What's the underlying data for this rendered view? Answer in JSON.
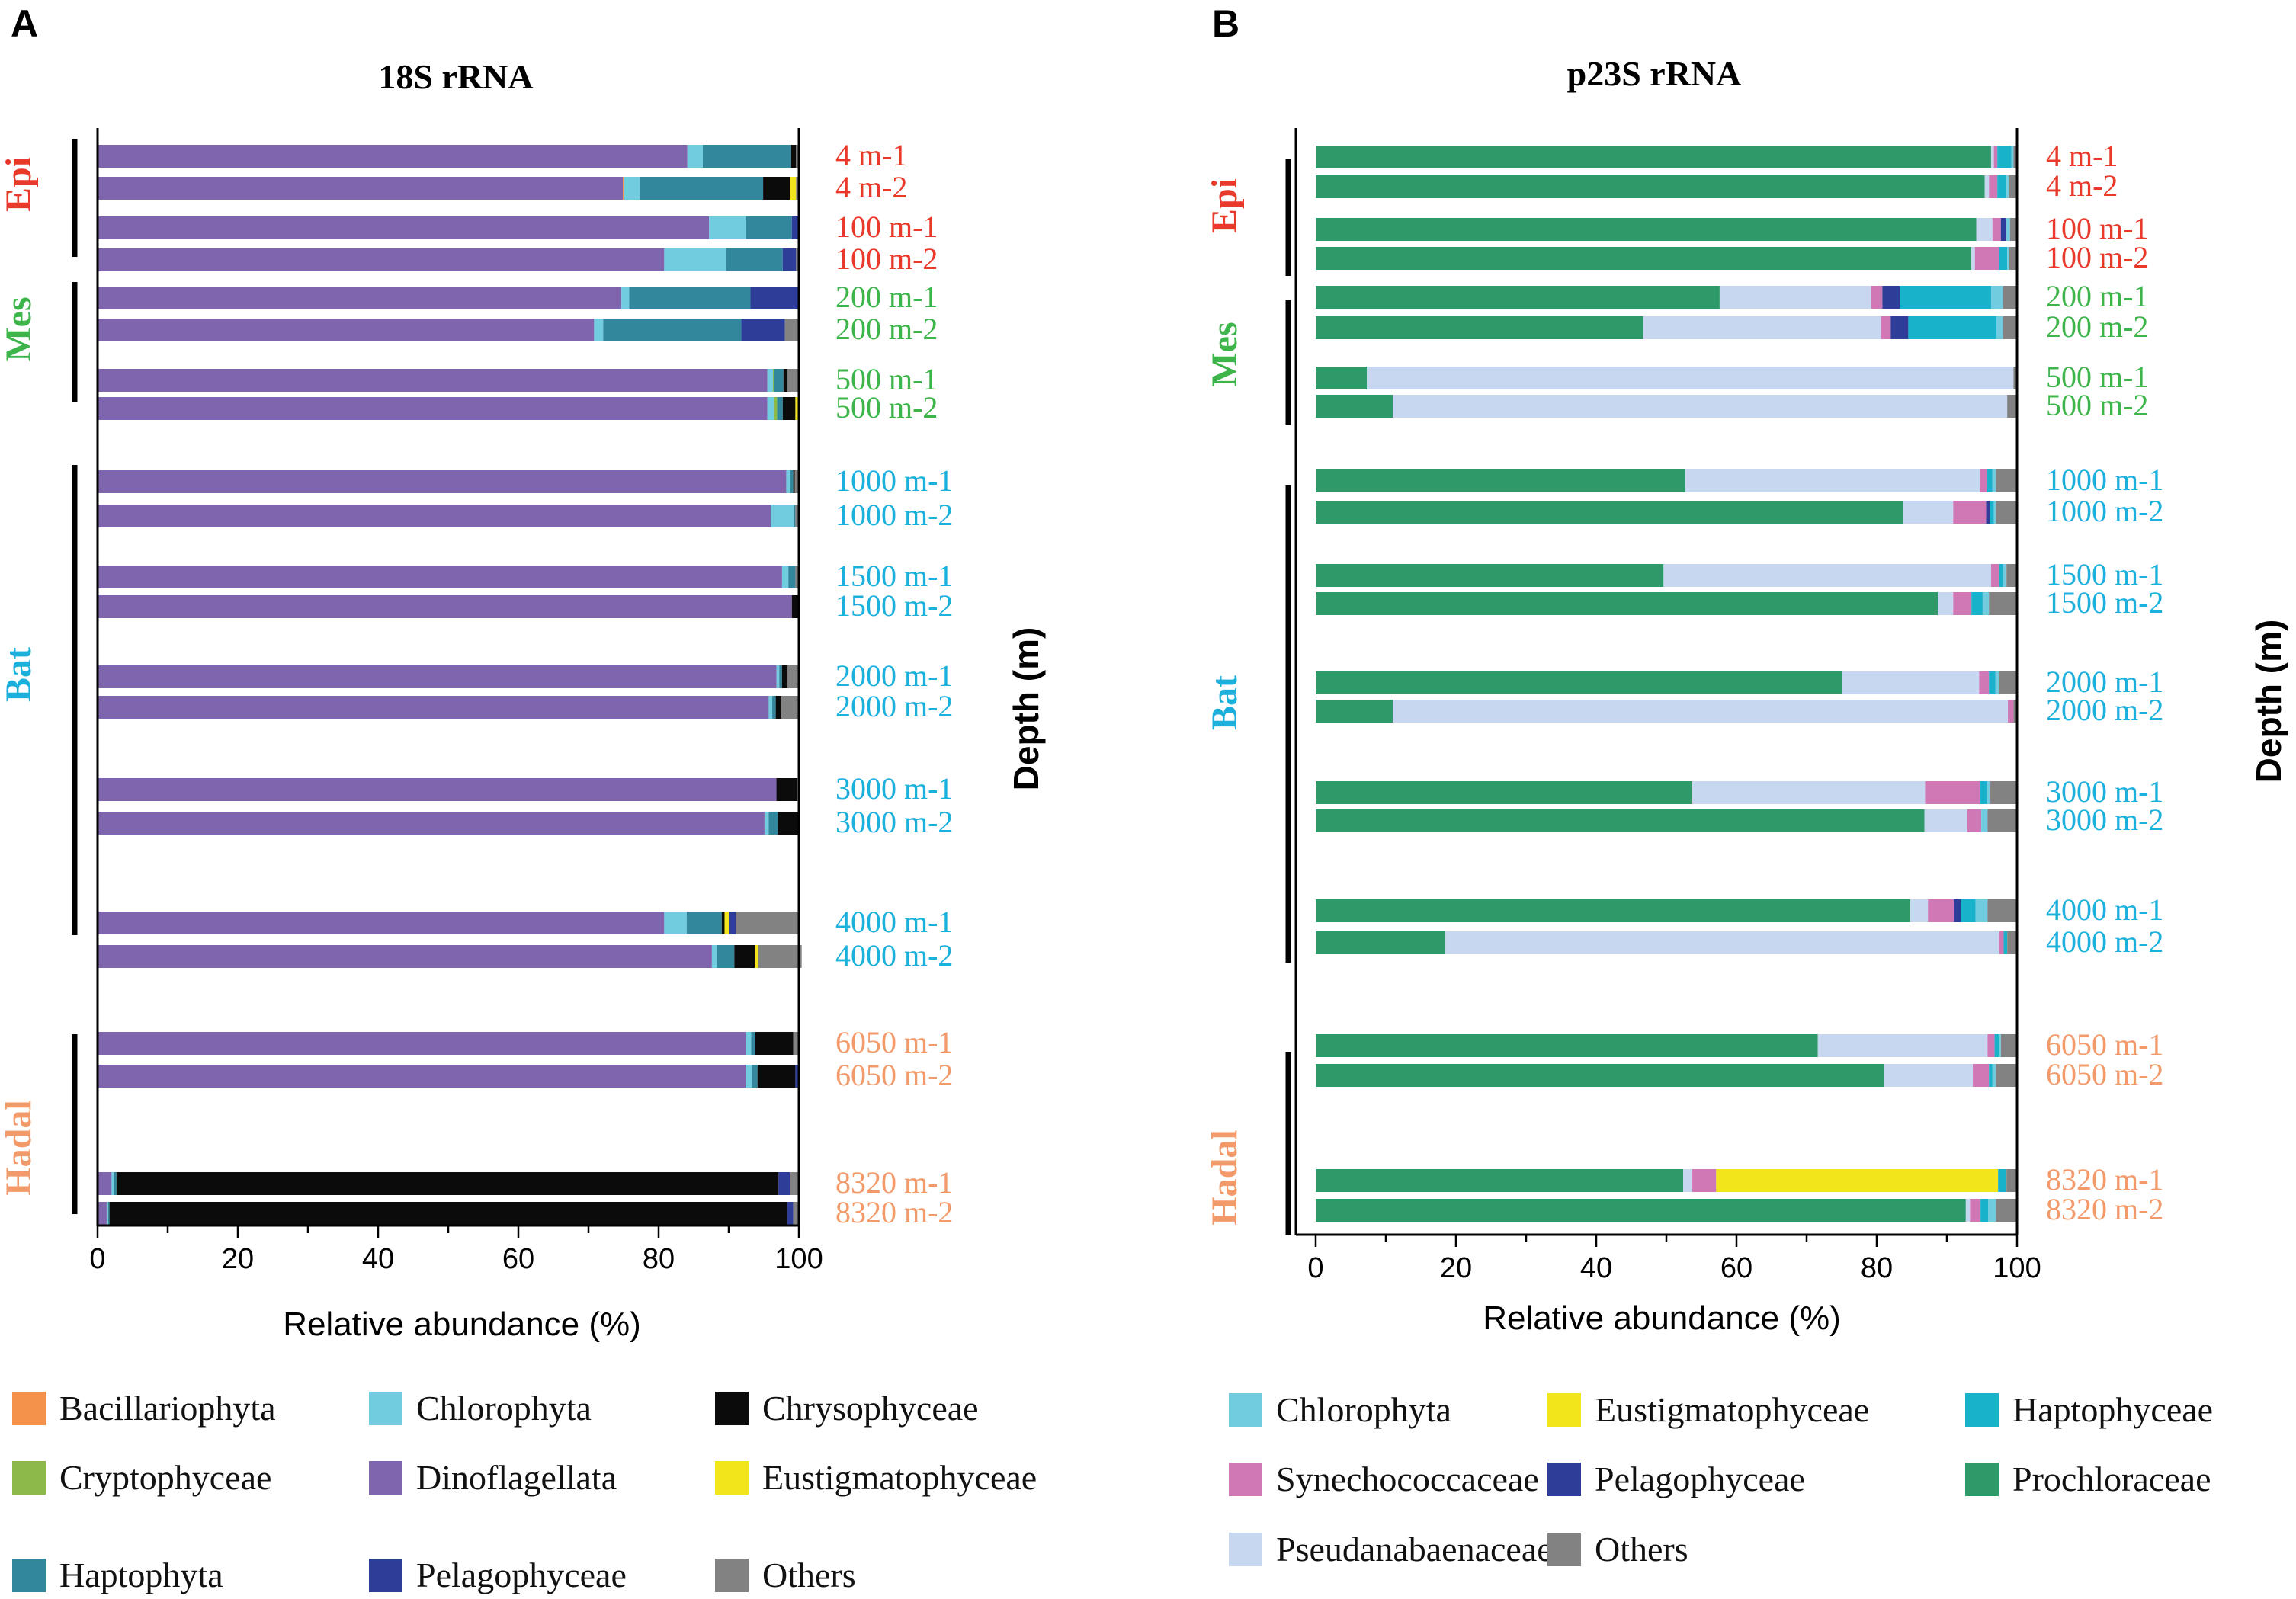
{
  "colors": {
    "Bacillariophyta": "#F4914A",
    "Chlorophyta": "#72CCE0",
    "Chrysophyceae": "#0B0B0B",
    "Cryptophyceae": "#8DB94B",
    "Dinoflagellata": "#7F65AD",
    "Eustigmatophyceae": "#F2E51B",
    "Haptophyta": "#32879C",
    "Haptophyceae": "#19B2CB",
    "Pelagophyceae": "#2D3D98",
    "Others": "#828282",
    "Synechococcaceae": "#CF78B5",
    "Prochloraceae": "#2E9A69",
    "Pseudanabaenaceae": "#C7D7EF",
    "zone_Epi": "#E8392B",
    "zone_Mes": "#3DB54A",
    "zone_Bat": "#1CB0DD",
    "zone_Hadal": "#F39A6A"
  },
  "chart_data": [
    {
      "panel": "A",
      "type": "bar",
      "orientation": "horizontal",
      "stacked": true,
      "title": "18S rRNA",
      "xlabel": "Relative abundance (%)",
      "ylabel": "Depth (m)",
      "xlim": [
        0,
        100
      ],
      "xticks": [
        "0",
        "20",
        "40",
        "60",
        "80",
        "100"
      ],
      "zones": [
        {
          "name": "Epi",
          "samples": [
            "4 m-1",
            "4 m-2",
            "100 m-1",
            "100 m-2"
          ]
        },
        {
          "name": "Mes",
          "samples": [
            "200 m-1",
            "200 m-2",
            "500 m-1",
            "500 m-2"
          ]
        },
        {
          "name": "Bat",
          "samples": [
            "1000 m-1",
            "1000 m-2",
            "1500 m-1",
            "1500 m-2",
            "2000 m-1",
            "2000 m-2",
            "3000 m-1",
            "3000 m-2",
            "4000 m-1",
            "4000 m-2"
          ]
        },
        {
          "name": "Hadal",
          "samples": [
            "6050 m-1",
            "6050 m-2",
            "8320 m-1",
            "8320 m-2"
          ]
        }
      ],
      "categories": [
        "4 m-1",
        "4 m-2",
        "100 m-1",
        "100 m-2",
        "200 m-1",
        "200 m-2",
        "500 m-1",
        "500 m-2",
        "1000 m-1",
        "1000 m-2",
        "1500 m-1",
        "1500 m-2",
        "2000 m-1",
        "2000 m-2",
        "3000 m-1",
        "3000 m-2",
        "4000 m-1",
        "4000 m-2",
        "6050 m-1",
        "6050 m-2",
        "8320 m-1",
        "8320 m-2"
      ],
      "series": [
        {
          "name": "Dinoflagellata",
          "values": [
            84.1,
            74.9,
            87.2,
            80.8,
            74.7,
            70.8,
            95.5,
            95.5,
            98.2,
            96.0,
            97.6,
            99.0,
            96.8,
            95.7,
            96.8,
            95.1,
            80.8,
            87.6,
            92.4,
            92.4,
            2.0,
            1.3
          ]
        },
        {
          "name": "Bacillariophyta",
          "values": [
            0.0,
            0.2,
            0.0,
            0.0,
            0.0,
            0.0,
            0.0,
            0.0,
            0.0,
            0.0,
            0.0,
            0.0,
            0.0,
            0.0,
            0.0,
            0.0,
            0.0,
            0.0,
            0.0,
            0.0,
            0.0,
            0.0
          ]
        },
        {
          "name": "Chlorophyta",
          "values": [
            2.2,
            2.2,
            5.3,
            8.8,
            1.1,
            1.3,
            0.8,
            1.0,
            0.6,
            3.3,
            0.9,
            0.0,
            0.4,
            0.5,
            0.0,
            0.6,
            3.2,
            0.7,
            0.8,
            0.9,
            0.3,
            0.2
          ]
        },
        {
          "name": "Cryptophyceae",
          "values": [
            0.0,
            0.0,
            0.0,
            0.0,
            0.0,
            0.0,
            0.2,
            0.4,
            0.0,
            0.0,
            0.0,
            0.0,
            0.0,
            0.0,
            0.0,
            0.0,
            0.0,
            0.0,
            0.0,
            0.0,
            0.0,
            0.0
          ]
        },
        {
          "name": "Haptophyta",
          "values": [
            12.6,
            17.6,
            6.5,
            8.1,
            17.3,
            19.7,
            1.3,
            0.8,
            0.4,
            0.2,
            1.0,
            0.0,
            0.4,
            0.5,
            0.0,
            1.3,
            5.0,
            2.5,
            0.6,
            0.8,
            0.4,
            0.2
          ]
        },
        {
          "name": "Chrysophyceae",
          "values": [
            0.7,
            3.8,
            0.0,
            0.0,
            0.0,
            0.0,
            0.6,
            1.8,
            0.2,
            0.0,
            0.0,
            0.9,
            0.8,
            0.8,
            3.0,
            3.1,
            0.4,
            2.9,
            5.4,
            5.4,
            94.4,
            96.6
          ]
        },
        {
          "name": "Eustigmatophyceae",
          "values": [
            0.0,
            0.9,
            0.0,
            0.0,
            0.0,
            0.0,
            0.0,
            0.5,
            0.0,
            0.0,
            0.0,
            0.0,
            0.0,
            0.0,
            0.0,
            0.0,
            0.6,
            0.5,
            0.0,
            0.0,
            0.0,
            0.0
          ]
        },
        {
          "name": "Pelagophyceae",
          "values": [
            0.0,
            0.0,
            0.9,
            1.9,
            6.9,
            6.2,
            0.0,
            0.0,
            0.0,
            0.0,
            0.0,
            0.0,
            0.0,
            0.0,
            0.0,
            0.0,
            1.0,
            0.0,
            0.0,
            0.5,
            1.6,
            0.9
          ]
        },
        {
          "name": "Others",
          "values": [
            0.4,
            0.4,
            0.1,
            0.4,
            0.0,
            2.0,
            1.6,
            0.0,
            0.6,
            0.5,
            0.5,
            0.1,
            1.6,
            2.5,
            0.2,
            0.0,
            9.0,
            6.2,
            0.8,
            0.0,
            1.3,
            0.8
          ]
        }
      ],
      "legend": [
        [
          "Bacillariophyta",
          "Chlorophyta",
          "Chrysophyceae"
        ],
        [
          "Cryptophyceae",
          "Dinoflagellata",
          "Eustigmatophyceae"
        ],
        [
          "Haptophyta",
          "Pelagophyceae",
          "Others"
        ]
      ]
    },
    {
      "panel": "B",
      "type": "bar",
      "orientation": "horizontal",
      "stacked": true,
      "title": "p23S rRNA",
      "xlabel": "Relative abundance (%)",
      "ylabel": "Depth (m)",
      "xlim": [
        0,
        100
      ],
      "xticks": [
        "0",
        "20",
        "40",
        "60",
        "80",
        "100"
      ],
      "zones": [
        {
          "name": "Epi",
          "samples": [
            "4 m-1",
            "4 m-2",
            "100 m-1",
            "100 m-2"
          ]
        },
        {
          "name": "Mes",
          "samples": [
            "200 m-1",
            "200 m-2",
            "500 m-1",
            "500 m-2"
          ]
        },
        {
          "name": "Bat",
          "samples": [
            "1000 m-1",
            "1000 m-2",
            "1500 m-1",
            "1500 m-2",
            "2000 m-1",
            "2000 m-2",
            "3000 m-1",
            "3000 m-2",
            "4000 m-1",
            "4000 m-2"
          ]
        },
        {
          "name": "Hadal",
          "samples": [
            "6050 m-1",
            "6050 m-2",
            "8320 m-1",
            "8320 m-2"
          ]
        }
      ],
      "categories": [
        "4 m-1",
        "4 m-2",
        "100 m-1",
        "100 m-2",
        "200 m-1",
        "200 m-2",
        "500 m-1",
        "500 m-2",
        "1000 m-1",
        "1000 m-2",
        "1500 m-1",
        "1500 m-2",
        "2000 m-1",
        "2000 m-2",
        "3000 m-1",
        "3000 m-2",
        "4000 m-1",
        "4000 m-2",
        "6050 m-1",
        "6050 m-2",
        "8320 m-1",
        "8320 m-2"
      ],
      "series": [
        {
          "name": "Prochloraceae",
          "values": [
            96.3,
            95.4,
            94.2,
            93.5,
            57.6,
            46.7,
            7.3,
            11.0,
            52.7,
            83.7,
            49.6,
            88.7,
            75.0,
            11.0,
            53.7,
            86.8,
            84.8,
            18.5,
            71.6,
            81.1,
            52.4,
            92.7
          ]
        },
        {
          "name": "Pseudanabaenaceae",
          "values": [
            0.4,
            0.6,
            2.3,
            0.5,
            21.6,
            33.9,
            92.2,
            87.6,
            42.0,
            7.2,
            46.7,
            2.2,
            19.6,
            87.7,
            33.2,
            6.1,
            2.5,
            79.0,
            24.2,
            12.6,
            1.3,
            0.6
          ]
        },
        {
          "name": "Synechococcaceae",
          "values": [
            0.5,
            1.2,
            1.2,
            3.4,
            1.6,
            1.4,
            0.0,
            0.0,
            1.0,
            4.7,
            1.2,
            2.6,
            1.4,
            0.8,
            7.8,
            2.0,
            3.7,
            0.6,
            1.0,
            2.3,
            3.4,
            1.5
          ]
        },
        {
          "name": "Eustigmatophyceae",
          "values": [
            0.0,
            0.0,
            0.0,
            0.0,
            0.0,
            0.0,
            0.0,
            0.0,
            0.0,
            0.0,
            0.0,
            0.0,
            0.0,
            0.0,
            0.0,
            0.0,
            0.0,
            0.0,
            0.0,
            0.0,
            40.2,
            0.0
          ]
        },
        {
          "name": "Pelagophyceae",
          "values": [
            0.0,
            0.0,
            0.8,
            0.0,
            2.5,
            2.5,
            0.0,
            0.0,
            0.0,
            0.5,
            0.0,
            0.0,
            0.0,
            0.0,
            0.0,
            0.0,
            1.0,
            0.0,
            0.0,
            0.0,
            0.0,
            0.0
          ]
        },
        {
          "name": "Haptophyceae",
          "values": [
            2.0,
            1.3,
            0.0,
            1.2,
            13.0,
            12.6,
            0.0,
            0.0,
            0.8,
            0.6,
            0.5,
            1.6,
            0.9,
            0.0,
            1.0,
            0.0,
            2.1,
            0.5,
            0.6,
            0.5,
            1.2,
            1.1
          ]
        },
        {
          "name": "Chlorophyta",
          "values": [
            0.3,
            0.3,
            0.5,
            0.3,
            1.7,
            0.9,
            0.0,
            0.0,
            0.5,
            0.3,
            0.5,
            0.9,
            0.5,
            0.0,
            0.5,
            0.9,
            1.7,
            0.0,
            0.3,
            0.5,
            0.0,
            1.1
          ]
        },
        {
          "name": "Others",
          "values": [
            0.5,
            1.2,
            1.0,
            1.1,
            2.0,
            2.0,
            0.5,
            1.4,
            3.0,
            3.0,
            1.5,
            4.0,
            2.6,
            0.5,
            3.8,
            4.2,
            4.2,
            1.4,
            2.3,
            3.0,
            1.5,
            3.0
          ]
        }
      ],
      "legend": [
        [
          "Chlorophyta",
          "Eustigmatophyceae",
          "Haptophyceae"
        ],
        [
          "Synechococcaceae",
          "Pelagophyceae",
          "Prochloraceae"
        ],
        [
          "Pseudanabaenaceae",
          "Others"
        ]
      ]
    }
  ]
}
